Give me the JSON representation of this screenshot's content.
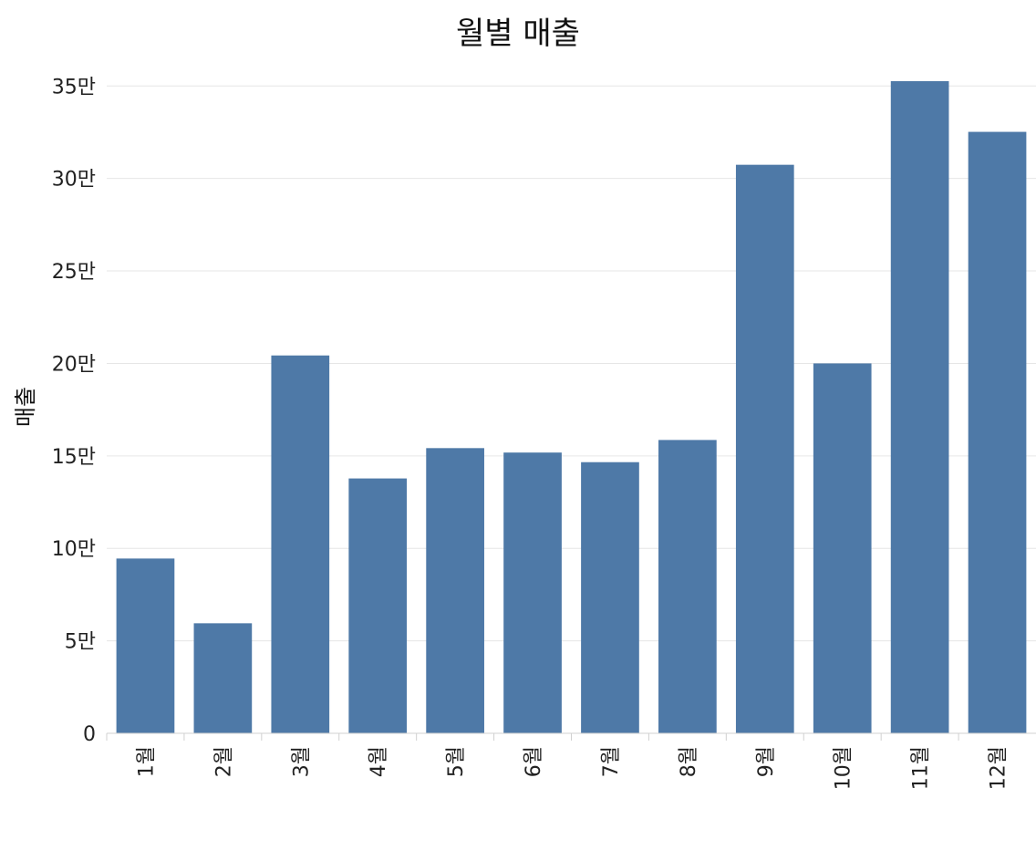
{
  "chart_data": {
    "type": "bar",
    "title": "월별 매출",
    "xlabel": "",
    "ylabel": "매출",
    "categories": [
      "1월",
      "2월",
      "3월",
      "4월",
      "5월",
      "6월",
      "7월",
      "8월",
      "9월",
      "10월",
      "11월",
      "12월"
    ],
    "values": [
      94500,
      59500,
      204300,
      137800,
      154200,
      151800,
      146600,
      158600,
      307400,
      200000,
      352600,
      325200
    ],
    "yticks": [
      {
        "value": 0,
        "label": "0"
      },
      {
        "value": 50000,
        "label": "5만"
      },
      {
        "value": 100000,
        "label": "10만"
      },
      {
        "value": 150000,
        "label": "15만"
      },
      {
        "value": 200000,
        "label": "20만"
      },
      {
        "value": 250000,
        "label": "25만"
      },
      {
        "value": 300000,
        "label": "30만"
      },
      {
        "value": 350000,
        "label": "35만"
      }
    ],
    "ylim": [
      0,
      360000
    ],
    "grid": true,
    "bar_color": "#4e79a7"
  }
}
